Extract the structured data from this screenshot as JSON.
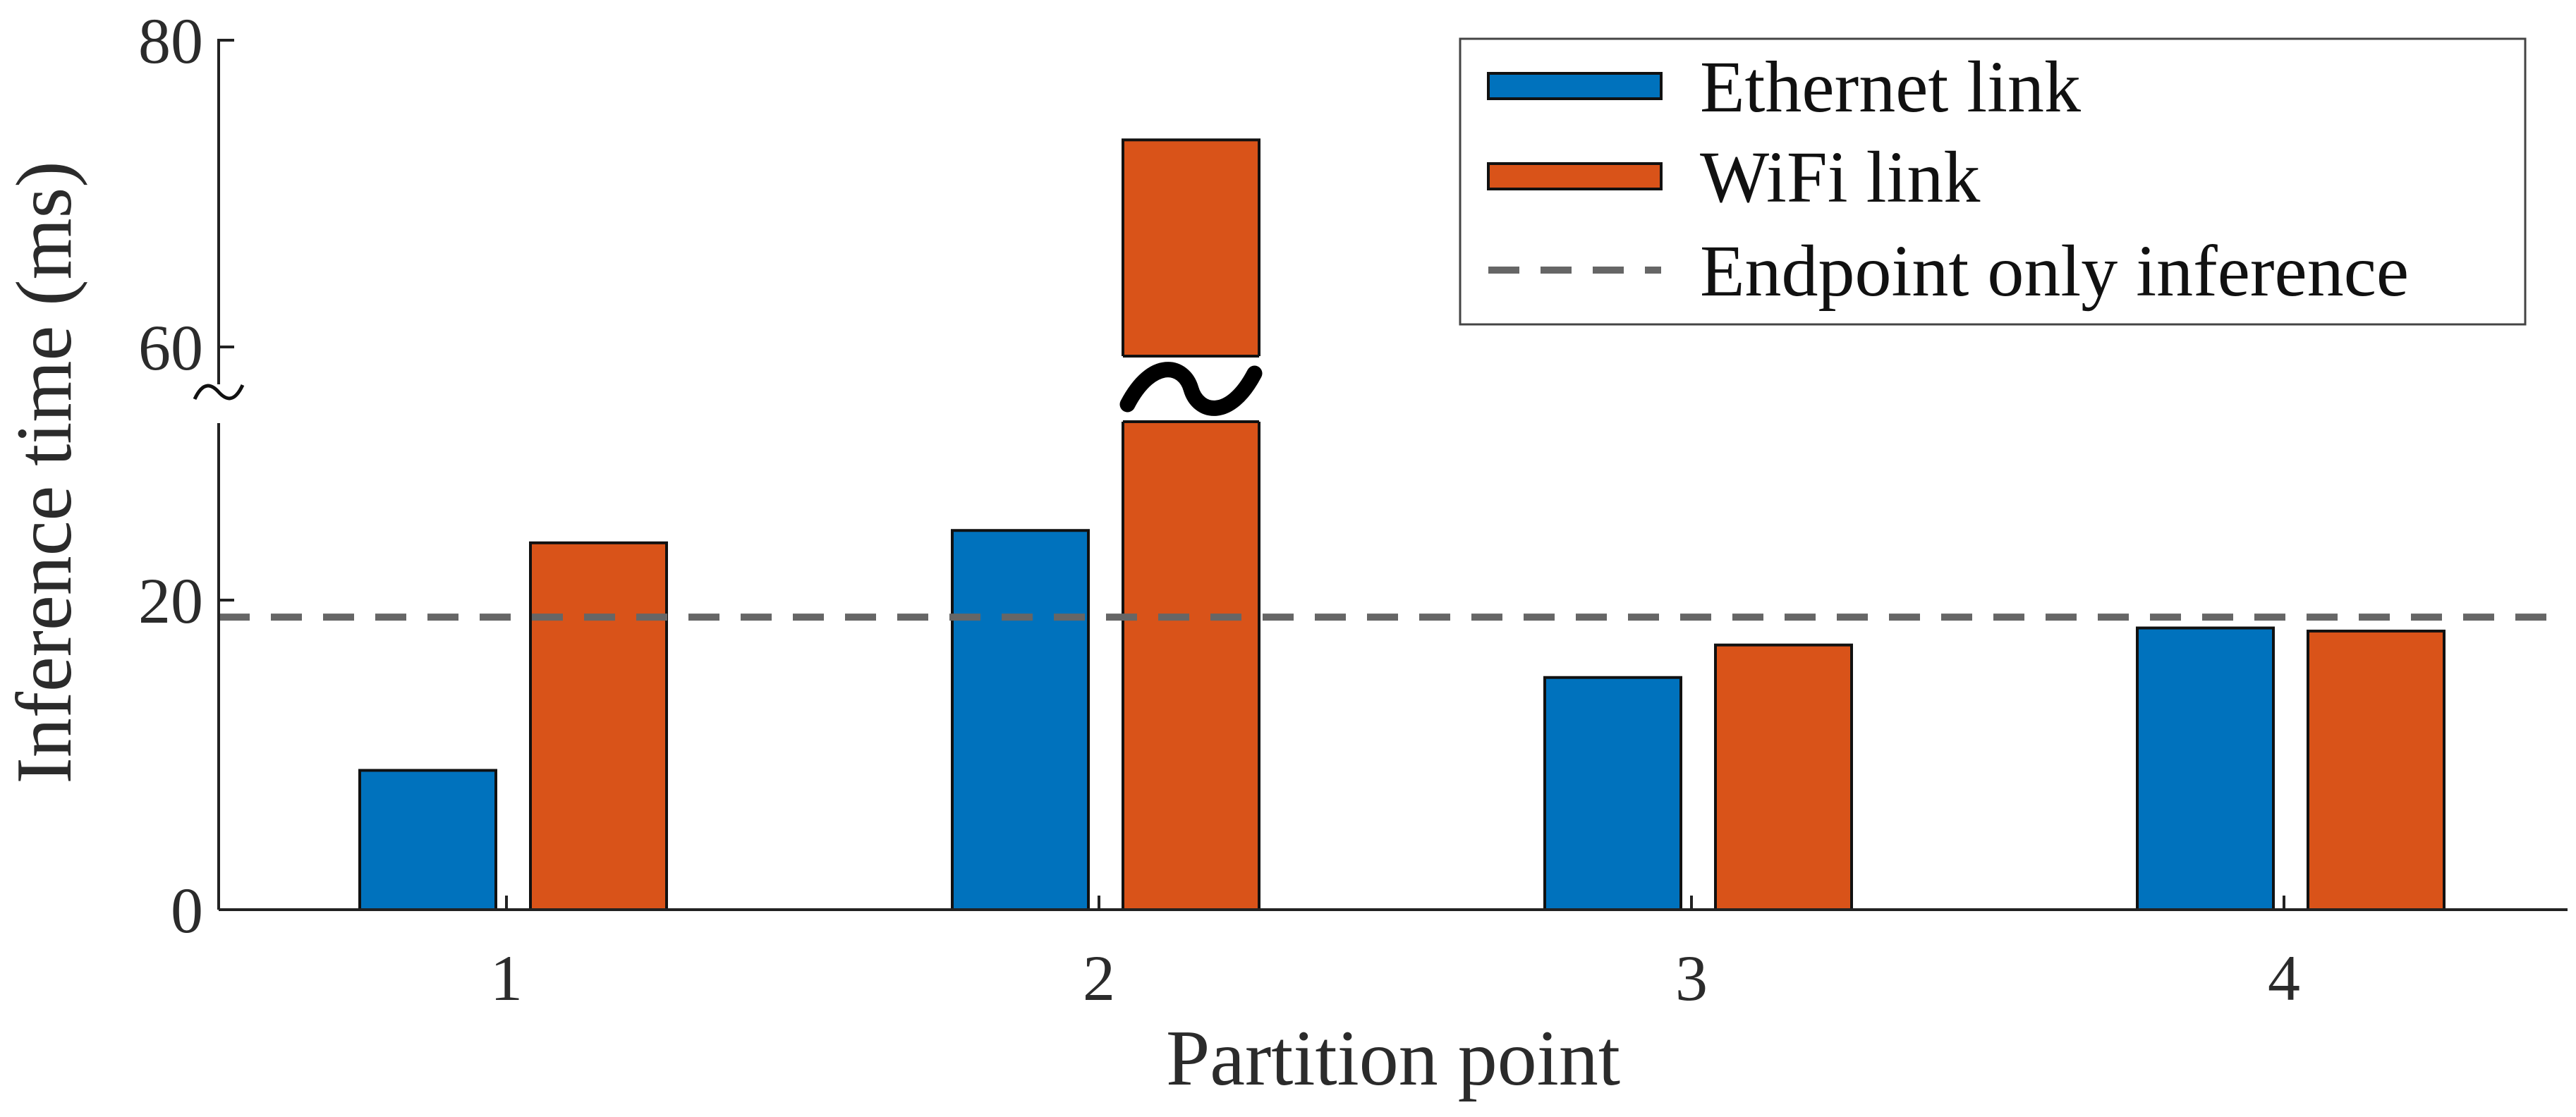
{
  "chart_data": {
    "type": "bar",
    "xlabel": "Partition point",
    "ylabel": "Inference time (ms)",
    "categories": [
      "1",
      "2",
      "3",
      "4"
    ],
    "y_tick_labels": [
      "0",
      "20",
      "60",
      "80"
    ],
    "y_axis_break": {
      "lower_range": [
        0,
        32
      ],
      "upper_range": [
        60,
        80
      ],
      "break_symbol": "~"
    },
    "series": [
      {
        "name": "Ethernet link",
        "color": "#0072BD",
        "values": [
          9,
          24.5,
          15,
          18.2
        ]
      },
      {
        "name": "WiFi link",
        "color": "#D95319",
        "values": [
          23.7,
          73.5,
          17.1,
          18
        ]
      }
    ],
    "reference_line": {
      "name": "Endpoint only inference",
      "value": 18.9,
      "color": "#666666",
      "style": "dashed"
    },
    "legend": {
      "position": "top-right"
    },
    "grid": false
  }
}
